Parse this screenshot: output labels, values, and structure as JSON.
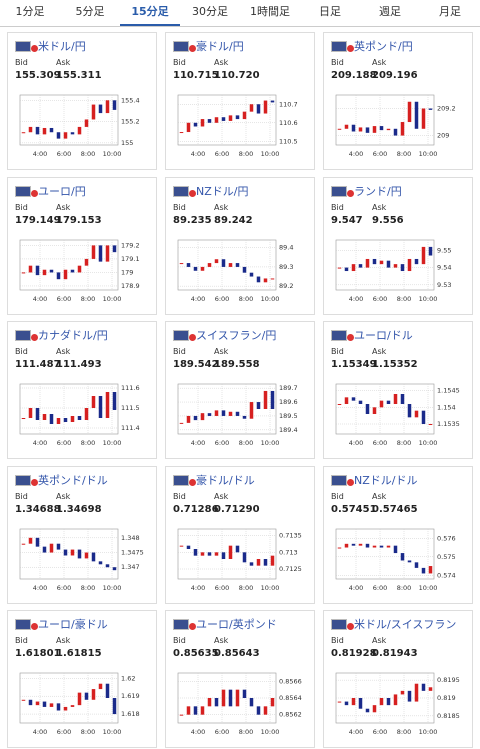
{
  "tabs": [
    "1分足",
    "5分足",
    "15分足",
    "30分足",
    "1時間足",
    "日足",
    "週足",
    "月足"
  ],
  "active_tab": 2,
  "labels": {
    "bid": "Bid",
    "ask": "Ask"
  },
  "xticks": [
    "4:00",
    "6:00",
    "8:00",
    "10:00"
  ],
  "cards": [
    {
      "title": "米ドル/円",
      "bid": "155.309",
      "ask": "155.311",
      "ylim": [
        154.98,
        155.45
      ],
      "yticks": [
        155,
        155.2,
        155.4
      ],
      "values": [
        155.1,
        155.15,
        155.08,
        155.14,
        155.1,
        155.04,
        155.1,
        155.08,
        155.15,
        155.22,
        155.36,
        155.28,
        155.4,
        155.31
      ]
    },
    {
      "title": "豪ドル/円",
      "bid": "110.715",
      "ask": "110.720",
      "ylim": [
        110.48,
        110.75
      ],
      "yticks": [
        110.5,
        110.6,
        110.7
      ],
      "values": [
        110.55,
        110.6,
        110.58,
        110.62,
        110.6,
        110.63,
        110.61,
        110.64,
        110.62,
        110.66,
        110.7,
        110.65,
        110.72,
        110.71
      ]
    },
    {
      "title": "英ポンド/円",
      "bid": "209.188",
      "ask": "209.196",
      "ylim": [
        208.93,
        209.3
      ],
      "yticks": [
        209,
        209.2
      ],
      "values": [
        209.05,
        209.08,
        209.03,
        209.06,
        209.02,
        209.07,
        209.04,
        209.05,
        209.0,
        209.1,
        209.25,
        209.05,
        209.2,
        209.19
      ]
    },
    {
      "title": "ユーロ/円",
      "bid": "179.149",
      "ask": "179.153",
      "ylim": [
        178.87,
        179.24
      ],
      "yticks": [
        178.9,
        179,
        179.1,
        179.2
      ],
      "values": [
        179.0,
        179.05,
        178.98,
        179.02,
        179.0,
        178.95,
        179.02,
        179.0,
        179.05,
        179.1,
        179.2,
        179.08,
        179.2,
        179.15
      ]
    },
    {
      "title": "NZドル/円",
      "bid": "89.235",
      "ask": "89.242",
      "ylim": [
        89.18,
        89.44
      ],
      "yticks": [
        89.2,
        89.3,
        89.4
      ],
      "values": [
        89.32,
        89.3,
        89.28,
        89.3,
        89.32,
        89.34,
        89.3,
        89.32,
        89.3,
        89.27,
        89.25,
        89.22,
        89.24,
        89.24
      ]
    },
    {
      "title": "ランド/円",
      "bid": "9.547",
      "ask": "9.556",
      "ylim": [
        9.527,
        9.556
      ],
      "yticks": [
        9.53,
        9.54,
        9.55
      ],
      "values": [
        9.54,
        9.538,
        9.542,
        9.54,
        9.545,
        9.542,
        9.544,
        9.54,
        9.542,
        9.538,
        9.545,
        9.542,
        9.552,
        9.547
      ]
    },
    {
      "title": "カナダドル/円",
      "bid": "111.487",
      "ask": "111.493",
      "ylim": [
        111.37,
        111.62
      ],
      "yticks": [
        111.4,
        111.5,
        111.6
      ],
      "values": [
        111.45,
        111.5,
        111.44,
        111.47,
        111.42,
        111.45,
        111.43,
        111.46,
        111.44,
        111.5,
        111.56,
        111.45,
        111.58,
        111.49
      ]
    },
    {
      "title": "スイスフラン/円",
      "bid": "189.542",
      "ask": "189.558",
      "ylim": [
        189.37,
        189.73
      ],
      "yticks": [
        189.4,
        189.5,
        189.6,
        189.7
      ],
      "values": [
        189.45,
        189.5,
        189.47,
        189.52,
        189.5,
        189.54,
        189.5,
        189.53,
        189.5,
        189.48,
        189.6,
        189.55,
        189.68,
        189.55
      ]
    },
    {
      "title": "ユーロ/ドル",
      "bid": "1.15349",
      "ask": "1.15352",
      "ylim": [
        1.1532,
        1.1547
      ],
      "yticks": [
        1.1535,
        1.154,
        1.1545
      ],
      "values": [
        1.1541,
        1.1543,
        1.1542,
        1.1541,
        1.1538,
        1.154,
        1.1542,
        1.1541,
        1.1544,
        1.1541,
        1.1537,
        1.1539,
        1.1535,
        1.1535
      ]
    },
    {
      "title": "英ポンド/ドル",
      "bid": "1.34688",
      "ask": "1.34698",
      "ylim": [
        1.3466,
        1.3483
      ],
      "yticks": [
        1.347,
        1.3475,
        1.348
      ],
      "values": [
        1.3478,
        1.348,
        1.3477,
        1.3475,
        1.3478,
        1.3476,
        1.3474,
        1.3476,
        1.3473,
        1.3475,
        1.3472,
        1.3471,
        1.347,
        1.3469
      ]
    },
    {
      "title": "豪ドル/ドル",
      "bid": "0.71286",
      "ask": "0.71290",
      "ylim": [
        0.7122,
        0.7137
      ],
      "yticks": [
        0.7125,
        0.713,
        0.7135
      ],
      "values": [
        0.7132,
        0.7131,
        0.7129,
        0.713,
        0.7129,
        0.713,
        0.7128,
        0.7132,
        0.713,
        0.7127,
        0.7126,
        0.7128,
        0.7126,
        0.7129
      ]
    },
    {
      "title": "NZドル/ドル",
      "bid": "0.57451",
      "ask": "0.57465",
      "ylim": [
        0.5738,
        0.5765
      ],
      "yticks": [
        0.574,
        0.575,
        0.576
      ],
      "values": [
        0.5755,
        0.5757,
        0.5756,
        0.5757,
        0.5755,
        0.5756,
        0.5755,
        0.5756,
        0.5752,
        0.5748,
        0.5747,
        0.5744,
        0.5741,
        0.5745
      ]
    },
    {
      "title": "ユーロ/豪ドル",
      "bid": "1.61801",
      "ask": "1.61815",
      "ylim": [
        1.6175,
        1.6203
      ],
      "yticks": [
        1.618,
        1.619,
        1.62
      ],
      "values": [
        1.6188,
        1.6185,
        1.6187,
        1.6184,
        1.6186,
        1.6182,
        1.6184,
        1.6185,
        1.6192,
        1.6188,
        1.6194,
        1.6197,
        1.6189,
        1.618
      ]
    },
    {
      "title": "ユーロ/英ポンド",
      "bid": "0.85635",
      "ask": "0.85643",
      "ylim": [
        0.8561,
        0.8567
      ],
      "yticks": [
        0.8562,
        0.8564,
        0.8566
      ],
      "values": [
        0.8562,
        0.8563,
        0.8562,
        0.8563,
        0.8564,
        0.8563,
        0.8565,
        0.8563,
        0.8565,
        0.8564,
        0.8563,
        0.8562,
        0.8563,
        0.8564
      ]
    },
    {
      "title": "米ドル/スイスフラン",
      "bid": "0.81928",
      "ask": "0.81943",
      "ylim": [
        0.8183,
        0.8197
      ],
      "yticks": [
        0.8185,
        0.819,
        0.8195
      ],
      "values": [
        0.8189,
        0.8188,
        0.819,
        0.8187,
        0.8186,
        0.8188,
        0.819,
        0.8188,
        0.8191,
        0.8192,
        0.8189,
        0.8194,
        0.8192,
        0.8193
      ]
    }
  ]
}
